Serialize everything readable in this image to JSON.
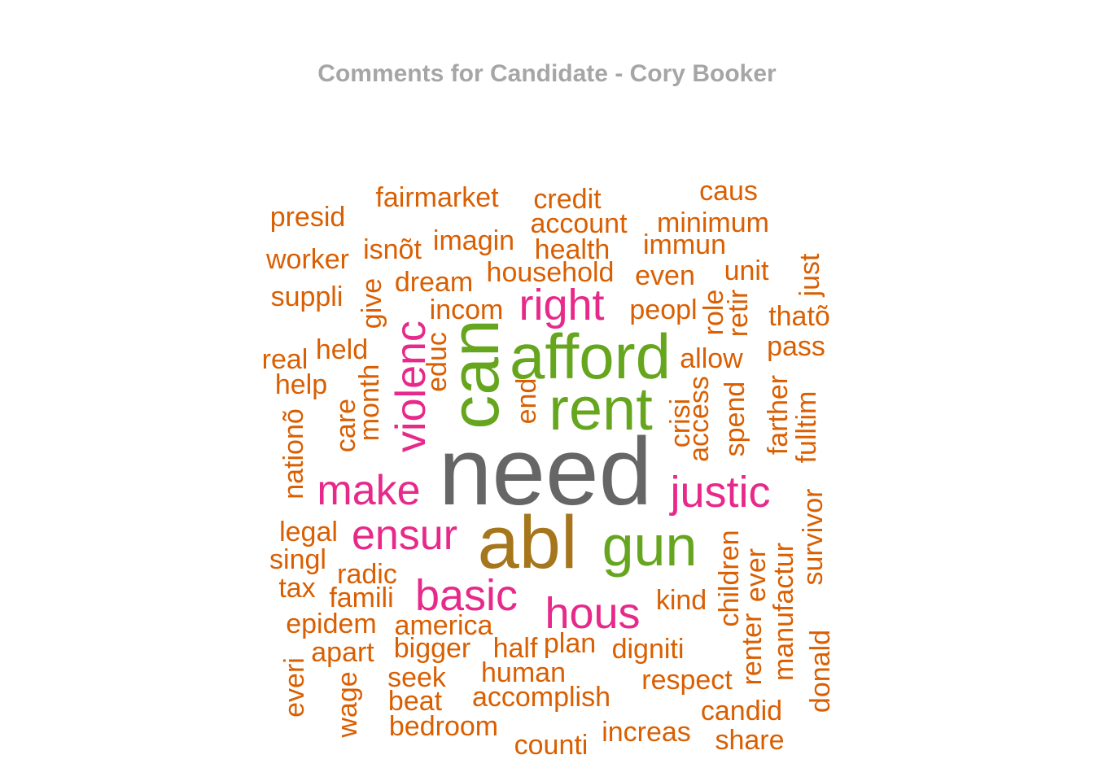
{
  "title": "Comments for Candidate - Cory Booker",
  "colors": {
    "title": "#a6a6a6",
    "gray": "#666666",
    "olive": "#a6761d",
    "green": "#66a61e",
    "pink": "#e7298a",
    "orange": "#d95f02"
  },
  "chart_data": {
    "type": "wordcloud",
    "title": "Comments for Candidate - Cory Booker",
    "words": [
      {
        "text": "need",
        "color": "gray",
        "rotated": false
      },
      {
        "text": "abl",
        "color": "olive",
        "rotated": false
      },
      {
        "text": "afford",
        "color": "green",
        "rotated": false
      },
      {
        "text": "rent",
        "color": "green",
        "rotated": false
      },
      {
        "text": "can",
        "color": "green",
        "rotated": true
      },
      {
        "text": "gun",
        "color": "green",
        "rotated": false
      },
      {
        "text": "right",
        "color": "pink",
        "rotated": false
      },
      {
        "text": "violenc",
        "color": "pink",
        "rotated": true
      },
      {
        "text": "make",
        "color": "pink",
        "rotated": false
      },
      {
        "text": "justic",
        "color": "pink",
        "rotated": false
      },
      {
        "text": "ensur",
        "color": "pink",
        "rotated": false
      },
      {
        "text": "basic",
        "color": "pink",
        "rotated": false
      },
      {
        "text": "hous",
        "color": "pink",
        "rotated": false
      },
      {
        "text": "presid",
        "color": "orange",
        "rotated": false
      },
      {
        "text": "fairmarket",
        "color": "orange",
        "rotated": false
      },
      {
        "text": "credit",
        "color": "orange",
        "rotated": false
      },
      {
        "text": "caus",
        "color": "orange",
        "rotated": false
      },
      {
        "text": "account",
        "color": "orange",
        "rotated": false
      },
      {
        "text": "minimum",
        "color": "orange",
        "rotated": false
      },
      {
        "text": "worker",
        "color": "orange",
        "rotated": false
      },
      {
        "text": "isnõt",
        "color": "orange",
        "rotated": false
      },
      {
        "text": "imagin",
        "color": "orange",
        "rotated": false
      },
      {
        "text": "health",
        "color": "orange",
        "rotated": false
      },
      {
        "text": "immun",
        "color": "orange",
        "rotated": false
      },
      {
        "text": "household",
        "color": "orange",
        "rotated": false
      },
      {
        "text": "even",
        "color": "orange",
        "rotated": false
      },
      {
        "text": "unit",
        "color": "orange",
        "rotated": false
      },
      {
        "text": "suppli",
        "color": "orange",
        "rotated": false
      },
      {
        "text": "dream",
        "color": "orange",
        "rotated": false
      },
      {
        "text": "incom",
        "color": "orange",
        "rotated": false
      },
      {
        "text": "peopl",
        "color": "orange",
        "rotated": false
      },
      {
        "text": "thatõ",
        "color": "orange",
        "rotated": false
      },
      {
        "text": "real",
        "color": "orange",
        "rotated": false
      },
      {
        "text": "held",
        "color": "orange",
        "rotated": false
      },
      {
        "text": "allow",
        "color": "orange",
        "rotated": false
      },
      {
        "text": "pass",
        "color": "orange",
        "rotated": false
      },
      {
        "text": "help",
        "color": "orange",
        "rotated": false
      },
      {
        "text": "legal",
        "color": "orange",
        "rotated": false
      },
      {
        "text": "singl",
        "color": "orange",
        "rotated": false
      },
      {
        "text": "radic",
        "color": "orange",
        "rotated": false
      },
      {
        "text": "tax",
        "color": "orange",
        "rotated": false
      },
      {
        "text": "famili",
        "color": "orange",
        "rotated": false
      },
      {
        "text": "kind",
        "color": "orange",
        "rotated": false
      },
      {
        "text": "epidem",
        "color": "orange",
        "rotated": false
      },
      {
        "text": "america",
        "color": "orange",
        "rotated": false
      },
      {
        "text": "apart",
        "color": "orange",
        "rotated": false
      },
      {
        "text": "bigger",
        "color": "orange",
        "rotated": false
      },
      {
        "text": "half",
        "color": "orange",
        "rotated": false
      },
      {
        "text": "plan",
        "color": "orange",
        "rotated": false
      },
      {
        "text": "digniti",
        "color": "orange",
        "rotated": false
      },
      {
        "text": "seek",
        "color": "orange",
        "rotated": false
      },
      {
        "text": "human",
        "color": "orange",
        "rotated": false
      },
      {
        "text": "respect",
        "color": "orange",
        "rotated": false
      },
      {
        "text": "beat",
        "color": "orange",
        "rotated": false
      },
      {
        "text": "accomplish",
        "color": "orange",
        "rotated": false
      },
      {
        "text": "candid",
        "color": "orange",
        "rotated": false
      },
      {
        "text": "bedroom",
        "color": "orange",
        "rotated": false
      },
      {
        "text": "increas",
        "color": "orange",
        "rotated": false
      },
      {
        "text": "share",
        "color": "orange",
        "rotated": false
      },
      {
        "text": "counti",
        "color": "orange",
        "rotated": false
      },
      {
        "text": "give",
        "color": "orange",
        "rotated": true
      },
      {
        "text": "educ",
        "color": "orange",
        "rotated": true
      },
      {
        "text": "month",
        "color": "orange",
        "rotated": true
      },
      {
        "text": "care",
        "color": "orange",
        "rotated": true
      },
      {
        "text": "nationõ",
        "color": "orange",
        "rotated": true
      },
      {
        "text": "end",
        "color": "orange",
        "rotated": true
      },
      {
        "text": "crisi",
        "color": "orange",
        "rotated": true
      },
      {
        "text": "access",
        "color": "orange",
        "rotated": true
      },
      {
        "text": "spend",
        "color": "orange",
        "rotated": true
      },
      {
        "text": "role",
        "color": "orange",
        "rotated": true
      },
      {
        "text": "retir",
        "color": "orange",
        "rotated": true
      },
      {
        "text": "just",
        "color": "orange",
        "rotated": true
      },
      {
        "text": "farther",
        "color": "orange",
        "rotated": true
      },
      {
        "text": "fulltim",
        "color": "orange",
        "rotated": true
      },
      {
        "text": "survivor",
        "color": "orange",
        "rotated": true
      },
      {
        "text": "children",
        "color": "orange",
        "rotated": true
      },
      {
        "text": "ever",
        "color": "orange",
        "rotated": true
      },
      {
        "text": "renter",
        "color": "orange",
        "rotated": true
      },
      {
        "text": "manufactur",
        "color": "orange",
        "rotated": true
      },
      {
        "text": "donald",
        "color": "orange",
        "rotated": true
      },
      {
        "text": "everi",
        "color": "orange",
        "rotated": true
      },
      {
        "text": "wage",
        "color": "orange",
        "rotated": true
      }
    ]
  }
}
